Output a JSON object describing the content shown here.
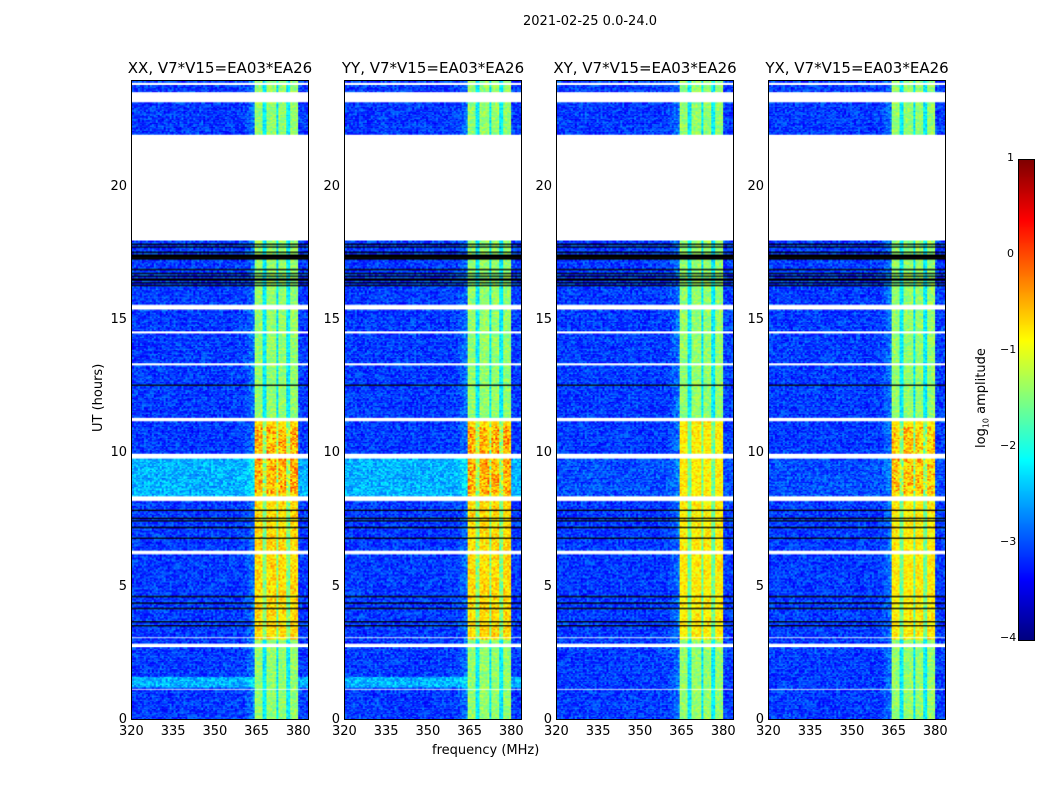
{
  "chart_data": {
    "type": "heatmap",
    "suptitle": "2021-02-25 0.0-24.0",
    "panels": [
      {
        "title": "XX, V7*V15=EA03*EA26",
        "base_boost": 0.6
      },
      {
        "title": "YY, V7*V15=EA03*EA26",
        "base_boost": 0.6
      },
      {
        "title": "XY, V7*V15=EA03*EA26",
        "base_boost": 0.1
      },
      {
        "title": "YX, V7*V15=EA03*EA26",
        "base_boost": 0.1
      }
    ],
    "xlabel": "frequency (MHz)",
    "ylabel": "UT (hours)",
    "xlim": [
      320,
      384
    ],
    "ylim": [
      0,
      24
    ],
    "xticks": [
      "320",
      "335",
      "350",
      "365",
      "380"
    ],
    "yticks": [
      "0",
      "5",
      "10",
      "15",
      "20"
    ],
    "rfi_band_mhz": [
      364,
      380
    ],
    "flagged_time_ranges_hours": [
      [
        18.0,
        22.0
      ],
      [
        23.2,
        23.6
      ],
      [
        23.85,
        23.95
      ],
      [
        15.4,
        15.6
      ],
      [
        14.5,
        14.6
      ],
      [
        13.3,
        13.4
      ],
      [
        11.2,
        11.35
      ],
      [
        9.8,
        10.0
      ],
      [
        8.2,
        8.4
      ],
      [
        6.2,
        6.35
      ],
      [
        3.05,
        3.1
      ],
      [
        2.7,
        2.85
      ],
      [
        1.1,
        1.15
      ]
    ],
    "colorbar": {
      "label": "log10 amplitude",
      "label_main": "log",
      "label_sub": "10",
      "label_rest": " amplitude",
      "range": [
        -4,
        1
      ],
      "ticks": [
        "1",
        "0",
        "−1",
        "−2",
        "−3",
        "−4"
      ],
      "colormap": "jet"
    }
  }
}
